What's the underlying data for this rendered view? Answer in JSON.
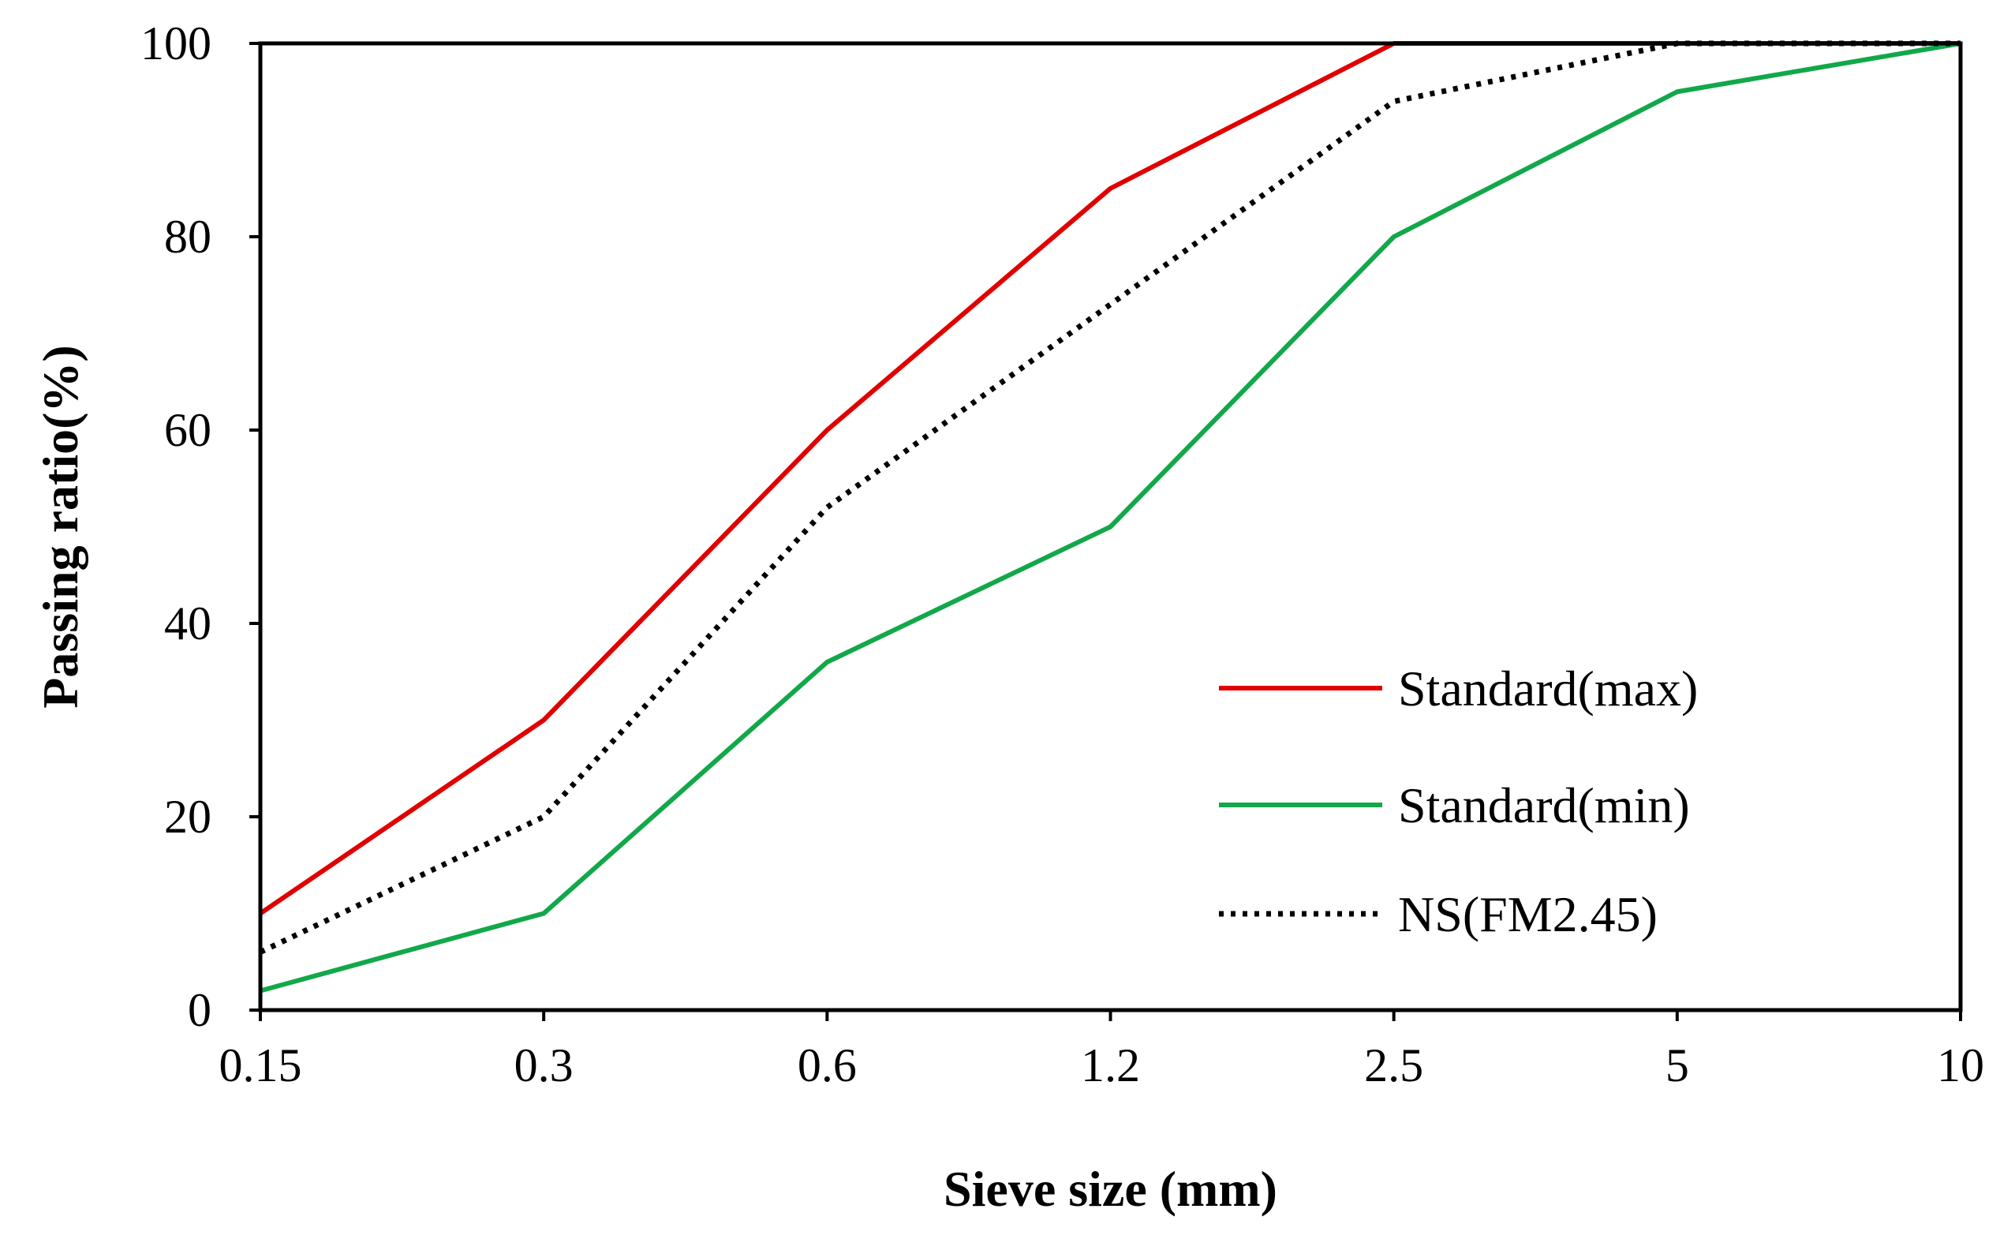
{
  "chart_data": {
    "type": "line",
    "categories": [
      "0.15",
      "0.3",
      "0.6",
      "1.2",
      "2.5",
      "5",
      "10"
    ],
    "ylim": [
      0,
      100
    ],
    "yticks": [
      "0",
      "20",
      "40",
      "60",
      "80",
      "100"
    ],
    "xlabel": "Sieve size (mm)",
    "ylabel": "Passing ratio(%)",
    "legend_position": "lower-right",
    "series": [
      {
        "name": "Standard(max)",
        "color": "#e00000",
        "style": "solid",
        "values": [
          10,
          30,
          60,
          85,
          100,
          100,
          100
        ]
      },
      {
        "name": "Standard(min)",
        "color": "#12a84a",
        "style": "solid",
        "values": [
          2,
          10,
          36,
          50,
          80,
          95,
          100
        ]
      },
      {
        "name": "NS(FM2.45)",
        "color": "#000000",
        "style": "dotted",
        "values": [
          6,
          20,
          52,
          73,
          94,
          100,
          100
        ]
      }
    ]
  }
}
